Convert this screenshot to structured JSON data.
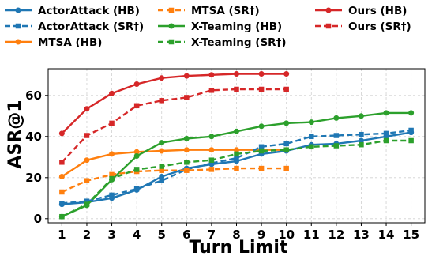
{
  "chart_data": {
    "type": "line",
    "xlabel": "Turn Limit",
    "ylabel": "ASR@1",
    "xlim": [
      0.45,
      15.55
    ],
    "ylim": [
      -2,
      73
    ],
    "x_ticks": [
      "1",
      "2",
      "3",
      "4",
      "5",
      "6",
      "7",
      "8",
      "9",
      "10",
      "11",
      "12",
      "13",
      "14",
      "15"
    ],
    "y_ticks": [
      "0",
      "20",
      "40",
      "60"
    ],
    "grid": true,
    "legend_position": "top, 3 columns",
    "series": [
      {
        "name": "ActorAttack (HB)",
        "color": "#1f77b4",
        "dash": "solid",
        "marker": "circle",
        "x": [
          1,
          2,
          3,
          4,
          5,
          6,
          7,
          8,
          9,
          10,
          11,
          12,
          13,
          14,
          15
        ],
        "y": [
          7.0,
          8.0,
          10.0,
          14.0,
          20.5,
          24.5,
          26.5,
          28.0,
          31.5,
          33.0,
          36.0,
          36.5,
          38.0,
          40.0,
          42.0
        ]
      },
      {
        "name": "MTSA (HB)",
        "color": "#ff7f0e",
        "dash": "solid",
        "marker": "circle",
        "x": [
          1,
          2,
          3,
          4,
          5,
          6,
          7,
          8,
          9,
          10
        ],
        "y": [
          20.5,
          28.5,
          31.5,
          32.5,
          33.0,
          33.5,
          33.5,
          33.5,
          33.5,
          33.5
        ]
      },
      {
        "name": "X-Teaming (HB)",
        "color": "#2ca02c",
        "dash": "solid",
        "marker": "circle",
        "x": [
          1,
          2,
          3,
          4,
          5,
          6,
          7,
          8,
          9,
          10,
          11,
          12,
          13,
          14,
          15
        ],
        "y": [
          1.0,
          6.5,
          19.0,
          30.5,
          37.0,
          39.0,
          40.0,
          42.5,
          45.0,
          46.5,
          47.0,
          49.0,
          50.0,
          51.5,
          51.5
        ]
      },
      {
        "name": "Ours (HB)",
        "color": "#d62728",
        "dash": "solid",
        "marker": "circle",
        "x": [
          1,
          2,
          3,
          4,
          5,
          6,
          7,
          8,
          9,
          10
        ],
        "y": [
          41.5,
          53.5,
          61.0,
          65.5,
          68.5,
          69.5,
          70.0,
          70.5,
          70.5,
          70.5
        ]
      },
      {
        "name": "ActorAttack (SR†)",
        "color": "#1f77b4",
        "dash": "dashed",
        "marker": "square",
        "x": [
          1,
          2,
          3,
          4,
          5,
          6,
          7,
          8,
          9,
          10,
          11,
          12,
          13,
          14,
          15
        ],
        "y": [
          7.5,
          8.5,
          11.5,
          14.5,
          18.5,
          24.0,
          27.0,
          29.5,
          35.0,
          36.5,
          40.0,
          40.5,
          41.0,
          41.5,
          43.0
        ]
      },
      {
        "name": "MTSA (SR†)",
        "color": "#ff7f0e",
        "dash": "dashed",
        "marker": "square",
        "x": [
          1,
          2,
          3,
          4,
          5,
          6,
          7,
          8,
          9,
          10
        ],
        "y": [
          13.0,
          18.5,
          21.5,
          23.0,
          23.5,
          23.5,
          24.0,
          24.5,
          24.5,
          24.5
        ]
      },
      {
        "name": "X-Teaming (SR†)",
        "color": "#2ca02c",
        "dash": "dashed",
        "marker": "square",
        "x": [
          1,
          2,
          3,
          4,
          5,
          6,
          7,
          8,
          9,
          10,
          11,
          12,
          13,
          14,
          15
        ],
        "y": [
          1.0,
          7.0,
          19.5,
          24.0,
          25.5,
          27.5,
          28.5,
          31.5,
          33.0,
          33.5,
          35.0,
          35.5,
          36.0,
          38.0,
          38.0
        ]
      },
      {
        "name": "Ours (SR†)",
        "color": "#d62728",
        "dash": "dashed",
        "marker": "square",
        "x": [
          1,
          2,
          3,
          4,
          5,
          6,
          7,
          8,
          9,
          10
        ],
        "y": [
          27.5,
          40.5,
          46.5,
          55.0,
          57.5,
          59.0,
          62.5,
          63.0,
          63.0,
          63.0
        ]
      }
    ]
  }
}
